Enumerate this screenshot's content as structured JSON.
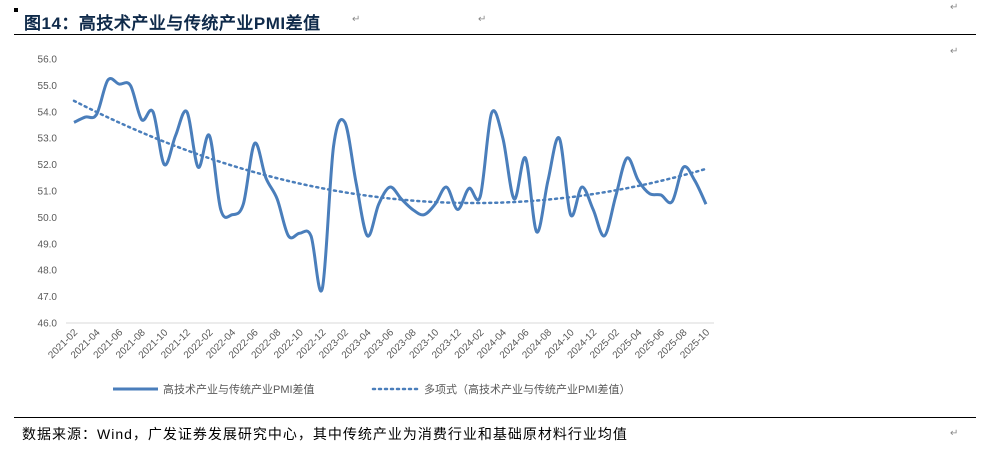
{
  "title": "图14：高技术产业与传统产业PMI差值",
  "return_mark": "↵",
  "footer": "数据来源：Wind，广发证券发展研究中心，其中传统产业为消费行业和基础原材料行业均值",
  "colors": {
    "series": "#4a7ebb",
    "axis": "#d9d9d9",
    "title": "#0f2a4a"
  },
  "chart_data": {
    "type": "line",
    "title": "高技术产业与传统产业PMI差值",
    "xlabel": "",
    "ylabel": "",
    "ylim": [
      46.0,
      56.0
    ],
    "yticks": [
      "46.0",
      "47.0",
      "48.0",
      "49.0",
      "50.0",
      "51.0",
      "52.0",
      "53.0",
      "54.0",
      "55.0",
      "56.0"
    ],
    "grid": false,
    "legend_position": "bottom",
    "xtick_labels": [
      "2021-02",
      "2021-04",
      "2021-06",
      "2021-08",
      "2021-10",
      "2021-12",
      "2022-02",
      "2022-04",
      "2022-06",
      "2022-08",
      "2022-10",
      "2022-12",
      "2023-02",
      "2023-04",
      "2023-06",
      "2023-08",
      "2023-10",
      "2023-12",
      "2024-02",
      "2024-04",
      "2024-06",
      "2024-08",
      "2024-10",
      "2024-12",
      "2025-02",
      "2025-04",
      "2025-06",
      "2025-08",
      "2025-10"
    ],
    "series": [
      {
        "name": "高技术产业与传统产业PMI差值",
        "style": "solid",
        "values": [
          53.6,
          53.8,
          53.9,
          55.2,
          55.05,
          55.0,
          53.7,
          54.0,
          52.0,
          53.1,
          54.0,
          51.9,
          53.1,
          50.3,
          50.1,
          50.5,
          52.8,
          51.5,
          50.7,
          49.3,
          49.4,
          49.3,
          47.3,
          52.7,
          53.6,
          51.3,
          49.3,
          50.5,
          51.15,
          50.7,
          50.3,
          50.1,
          50.5,
          51.15,
          50.3,
          51.1,
          50.8,
          53.95,
          53.0,
          50.7,
          52.25,
          49.45,
          51.4,
          53.0,
          50.1,
          51.15,
          50.3,
          49.3,
          50.8,
          52.25,
          51.4,
          50.9,
          50.85,
          50.6,
          51.9,
          51.4,
          50.5
        ]
      },
      {
        "name": "多项式（高技术产业与传统产业PMI差值）",
        "style": "dotted",
        "fit": "polynomial"
      }
    ]
  }
}
